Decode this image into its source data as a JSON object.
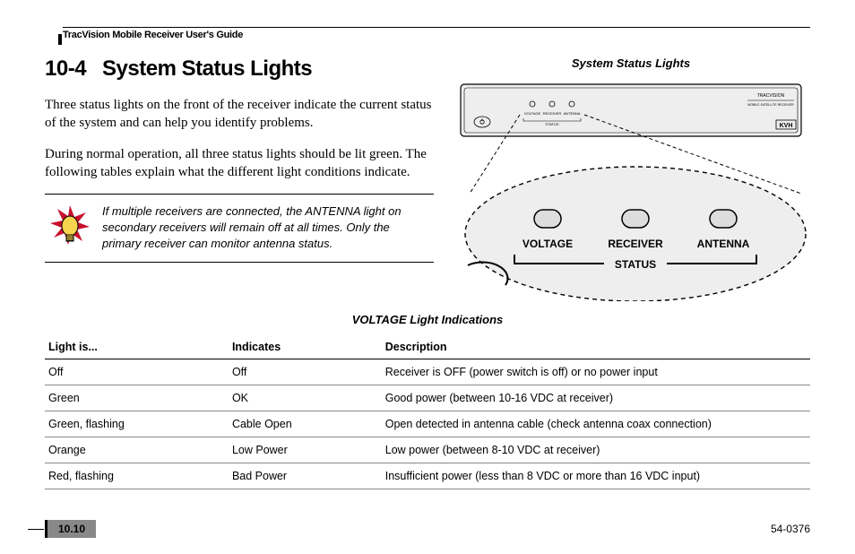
{
  "header": "TracVision Mobile Receiver User's Guide",
  "section_number": "10-4",
  "section_title": "System Status Lights",
  "paragraphs": [
    "Three status lights on the front of the receiver indicate the current status of the system and can help you identify problems.",
    "During normal operation, all three status lights should be lit green. The following tables explain what the different light conditions indicate."
  ],
  "tip": "If multiple receivers are connected, the ANTENNA light on secondary receivers will remain off at all times. Only the primary receiver can monitor antenna status.",
  "figure_caption": "System Status Lights",
  "diagram": {
    "labels": {
      "voltage": "VOLTAGE",
      "receiver": "RECEIVER",
      "antenna": "ANTENNA",
      "status": "STATUS"
    },
    "brand_top": "TRACVISION",
    "brand_bottom": "KVH"
  },
  "table": {
    "caption": "VOLTAGE Light Indications",
    "columns": [
      "Light is...",
      "Indicates",
      "Description"
    ],
    "rows": [
      [
        "Off",
        "Off",
        "Receiver is OFF (power switch is off) or no power input"
      ],
      [
        "Green",
        "OK",
        "Good power (between 10-16 VDC at receiver)"
      ],
      [
        "Green, flashing",
        "Cable Open",
        "Open detected in antenna cable (check antenna coax connection)"
      ],
      [
        "Orange",
        "Low Power",
        "Low power (between 8-10 VDC at receiver)"
      ],
      [
        "Red, flashing",
        "Bad Power",
        "Insufficient power (less than 8 VDC or more than 16 VDC input)"
      ]
    ]
  },
  "page_number": "10.10",
  "doc_id": "54-0376",
  "tip_icon": {
    "burst_color": "#c8102e",
    "bulb_color": "#f6d44d",
    "bulb_stroke": "#000000"
  }
}
